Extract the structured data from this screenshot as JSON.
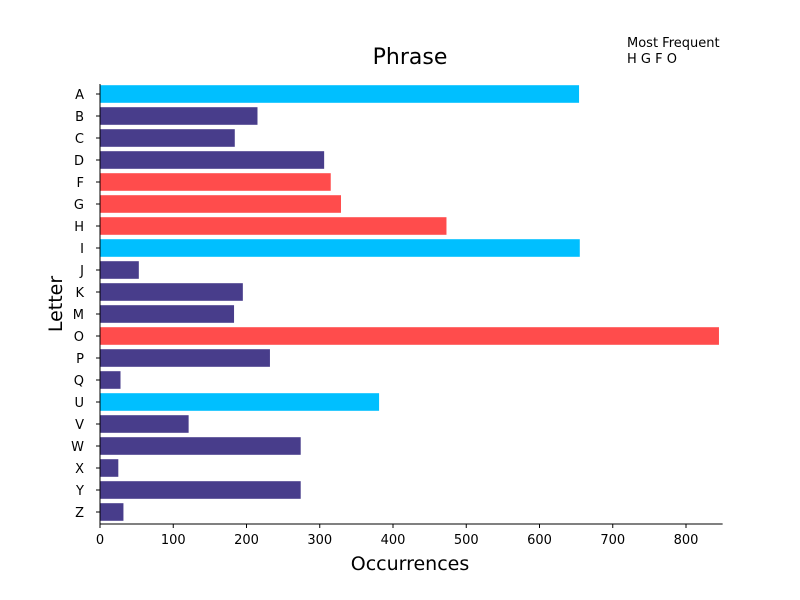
{
  "chart_data": {
    "type": "bar",
    "orientation": "horizontal",
    "title": "Phrase",
    "xlabel": "Occurrences",
    "ylabel": "Letter",
    "xlim": [
      0,
      850
    ],
    "xticks": [
      0,
      100,
      200,
      300,
      400,
      500,
      600,
      700,
      800
    ],
    "grid": false,
    "categories": [
      "A",
      "B",
      "C",
      "D",
      "F",
      "G",
      "H",
      "I",
      "J",
      "K",
      "M",
      "O",
      "P",
      "Q",
      "U",
      "V",
      "W",
      "X",
      "Y",
      "Z"
    ],
    "values": [
      654,
      215,
      184,
      306,
      315,
      329,
      473,
      655,
      53,
      195,
      183,
      845,
      232,
      28,
      381,
      121,
      274,
      25,
      274,
      32
    ],
    "bar_groups": [
      "vowel",
      "other",
      "other",
      "other",
      "top",
      "top",
      "top",
      "vowel",
      "other",
      "other",
      "other",
      "top",
      "other",
      "other",
      "vowel",
      "other",
      "other",
      "other",
      "other",
      "other"
    ],
    "colors": {
      "vowel": "#00bfff",
      "other": "#483d8b",
      "top": "#ff4c4c"
    },
    "annotation": {
      "line1": "Most Frequent",
      "line2": "H G F O"
    }
  }
}
